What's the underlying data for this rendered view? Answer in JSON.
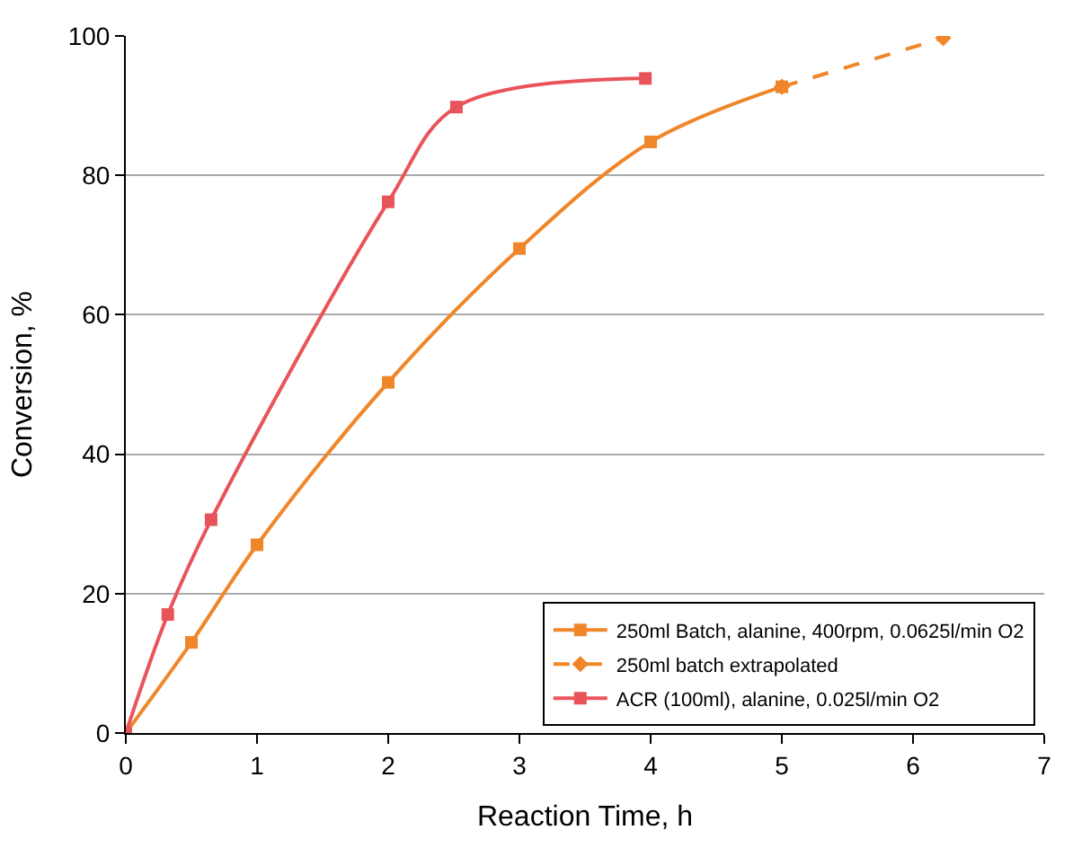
{
  "chart_data": {
    "type": "line",
    "xlabel": "Reaction Time, h",
    "ylabel": "Conversion, %",
    "xlim": [
      0,
      7
    ],
    "xticks": [
      0,
      1,
      2,
      3,
      4,
      5,
      6,
      7
    ],
    "ylim": [
      0,
      100
    ],
    "yticks": [
      0,
      20,
      40,
      60,
      80,
      100
    ],
    "grid": "y",
    "legend": "bottom right",
    "series": [
      {
        "name": "250ml Batch, alanine, 400rpm, 0.0625l/min O2",
        "color": "#f0862a",
        "marker": "square",
        "line_style": "solid",
        "x": [
          0,
          0.5,
          1,
          2,
          3,
          4,
          5
        ],
        "values": [
          0,
          13,
          27,
          50.3,
          69.5,
          84.8,
          92.7
        ]
      },
      {
        "name": "250ml batch extrapolated",
        "color": "#f0862a",
        "marker": "diamond",
        "line_style": "dashed",
        "x": [
          5,
          6.23
        ],
        "values": [
          92.7,
          99.7
        ]
      },
      {
        "name": "ACR (100ml), alanine, 0.025l/min O2",
        "color": "#e9545a",
        "marker": "square",
        "line_style": "solid",
        "x": [
          0,
          0.32,
          0.65,
          2,
          2.52,
          3.96
        ],
        "values": [
          0,
          17,
          30.6,
          76.2,
          89.8,
          93.9
        ]
      }
    ]
  }
}
